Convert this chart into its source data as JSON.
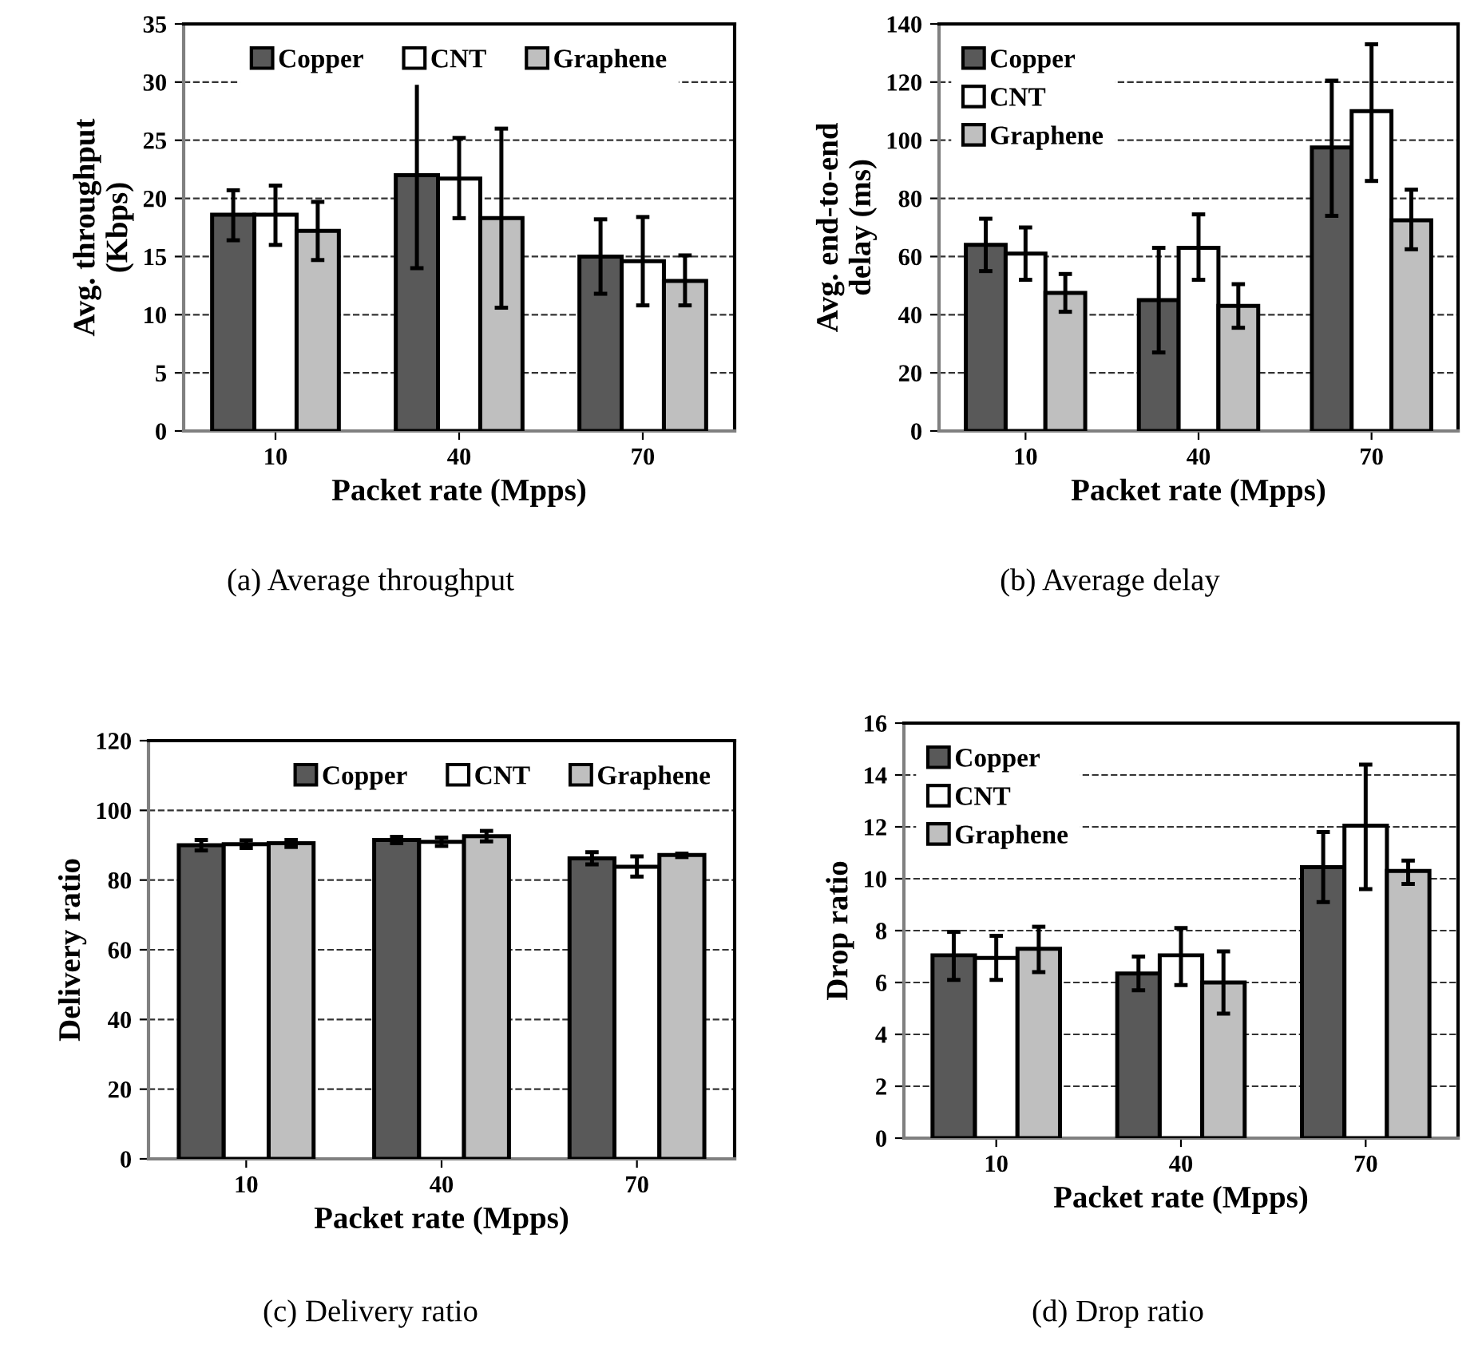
{
  "chart_data": [
    {
      "type": "bar",
      "title": "(a) Average throughput",
      "xlabel": "Packet rate (Mpps)",
      "ylabel": "Avg. throughput\n(Kbps)",
      "categories": [
        "10",
        "40",
        "70"
      ],
      "ylim": [
        0,
        35
      ],
      "yticks": [
        0,
        5,
        10,
        15,
        20,
        25,
        30,
        35
      ],
      "grid": "y",
      "legend": "top",
      "series": [
        {
          "name": "Copper",
          "color": "#595959",
          "values": [
            18.6,
            22,
            15
          ],
          "errors": [
            [
              16.4,
              20.7
            ],
            [
              14,
              30
            ],
            [
              11.8,
              18.2
            ]
          ]
        },
        {
          "name": "CNT",
          "color": "#ffffff",
          "values": [
            18.6,
            21.7,
            14.6
          ],
          "errors": [
            [
              16,
              21.1
            ],
            [
              18.3,
              25.2
            ],
            [
              10.8,
              18.4
            ]
          ]
        },
        {
          "name": "Graphene",
          "color": "#bfbfbf",
          "values": [
            17.2,
            18.3,
            12.9
          ],
          "errors": [
            [
              14.7,
              19.7
            ],
            [
              10.6,
              26
            ],
            [
              10.8,
              15.1
            ]
          ]
        }
      ]
    },
    {
      "type": "bar",
      "title": "(b) Average delay",
      "xlabel": "Packet rate (Mpps)",
      "ylabel": "Avg. end-to-end\ndelay (ms)",
      "categories": [
        "10",
        "40",
        "70"
      ],
      "ylim": [
        0,
        140
      ],
      "yticks": [
        0,
        20,
        40,
        60,
        80,
        100,
        120,
        140
      ],
      "grid": "y",
      "legend": "top left",
      "series": [
        {
          "name": "Copper",
          "color": "#595959",
          "values": [
            64,
            45,
            97.5
          ],
          "errors": [
            [
              55,
              73
            ],
            [
              27,
              63
            ],
            [
              74,
              120.5
            ]
          ]
        },
        {
          "name": "CNT",
          "color": "#ffffff",
          "values": [
            61,
            63,
            110
          ],
          "errors": [
            [
              52,
              70
            ],
            [
              52,
              74.5
            ],
            [
              86,
              133
            ]
          ]
        },
        {
          "name": "Graphene",
          "color": "#bfbfbf",
          "values": [
            47.5,
            43,
            72.5
          ],
          "errors": [
            [
              41,
              54
            ],
            [
              35.5,
              50.5
            ],
            [
              62.5,
              83
            ]
          ]
        }
      ]
    },
    {
      "type": "bar",
      "title": "(c) Delivery ratio",
      "xlabel": "Packet rate (Mpps)",
      "ylabel": "Delivery ratio",
      "categories": [
        "10",
        "40",
        "70"
      ],
      "ylim": [
        0,
        120
      ],
      "yticks": [
        0,
        20,
        40,
        60,
        80,
        100,
        120
      ],
      "grid": "y",
      "legend": "top right",
      "series": [
        {
          "name": "Copper",
          "color": "#595959",
          "values": [
            90,
            91.5,
            86.2
          ],
          "errors": [
            [
              88.5,
              91.5
            ],
            [
              90.6,
              92.4
            ],
            [
              84.5,
              88
            ]
          ]
        },
        {
          "name": "CNT",
          "color": "#ffffff",
          "values": [
            90.3,
            91,
            83.8
          ],
          "errors": [
            [
              89.2,
              91.4
            ],
            [
              89.8,
              92.2
            ],
            [
              81,
              86.8
            ]
          ]
        },
        {
          "name": "Graphene",
          "color": "#bfbfbf",
          "values": [
            90.6,
            92.6,
            87.2
          ],
          "errors": [
            [
              89.5,
              91.5
            ],
            [
              91.1,
              94.1
            ],
            [
              86.6,
              87.6
            ]
          ]
        }
      ]
    },
    {
      "type": "bar",
      "title": "(d) Drop ratio",
      "xlabel": "Packet rate (Mpps)",
      "ylabel": "Drop ratio",
      "categories": [
        "10",
        "40",
        "70"
      ],
      "ylim": [
        0,
        16
      ],
      "yticks": [
        0,
        2,
        4,
        6,
        8,
        10,
        12,
        14,
        16
      ],
      "grid": "y",
      "legend": "top left",
      "series": [
        {
          "name": "Copper",
          "color": "#595959",
          "values": [
            7.05,
            6.35,
            10.45
          ],
          "errors": [
            [
              6.1,
              7.95
            ],
            [
              5.7,
              7
            ],
            [
              9.1,
              11.8
            ]
          ]
        },
        {
          "name": "CNT",
          "color": "#ffffff",
          "values": [
            6.95,
            7.05,
            12.05
          ],
          "errors": [
            [
              6.1,
              7.8
            ],
            [
              5.9,
              8.1
            ],
            [
              9.6,
              14.4
            ]
          ]
        },
        {
          "name": "Graphene",
          "color": "#bfbfbf",
          "values": [
            7.3,
            6,
            10.3
          ],
          "errors": [
            [
              6.4,
              8.15
            ],
            [
              4.8,
              7.2
            ],
            [
              9.8,
              10.7
            ]
          ]
        }
      ]
    }
  ]
}
